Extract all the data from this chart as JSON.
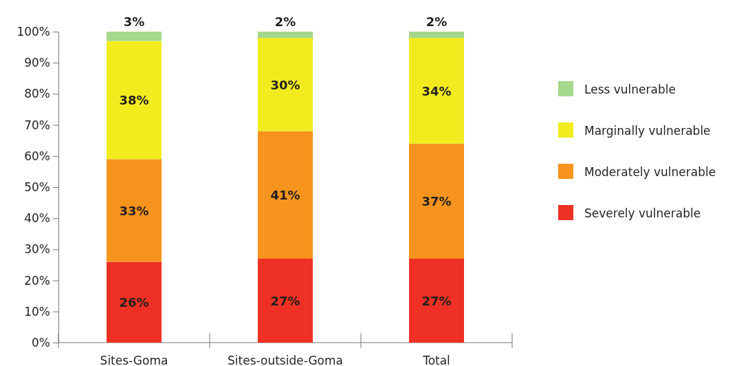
{
  "chart_data": {
    "type": "bar",
    "stacked": true,
    "categories": [
      "Sites-Goma",
      "Sites-outside-Goma",
      "Total"
    ],
    "series": [
      {
        "name": "Severely vulnerable",
        "color": "#ee3124",
        "values": [
          26,
          27,
          27
        ]
      },
      {
        "name": "Moderately vulnerable",
        "color": "#f7941d",
        "values": [
          33,
          41,
          37
        ]
      },
      {
        "name": "Marginally vulnerable",
        "color": "#f2ec1f",
        "values": [
          38,
          30,
          34
        ]
      },
      {
        "name": "Less vulnerable",
        "color": "#a5d78d",
        "values": [
          3,
          2,
          2
        ]
      }
    ],
    "ylim": [
      0,
      100
    ],
    "yticks": [
      {
        "value": 0,
        "label": "0%"
      },
      {
        "value": 10,
        "label": "10%"
      },
      {
        "value": 20,
        "label": "20%"
      },
      {
        "value": 30,
        "label": "30%"
      },
      {
        "value": 40,
        "label": "40%"
      },
      {
        "value": 50,
        "label": "50%"
      },
      {
        "value": 60,
        "label": "60%"
      },
      {
        "value": 70,
        "label": "70%"
      },
      {
        "value": 80,
        "label": "80%"
      },
      {
        "value": 90,
        "label": "90%"
      },
      {
        "value": 100,
        "label": "100%"
      }
    ],
    "value_labels": [
      [
        "26%",
        "33%",
        "38%",
        "3%"
      ],
      [
        "27%",
        "41%",
        "30%",
        "2%"
      ],
      [
        "27%",
        "37%",
        "34%",
        "2%"
      ]
    ],
    "legend": "right",
    "grid": false
  }
}
